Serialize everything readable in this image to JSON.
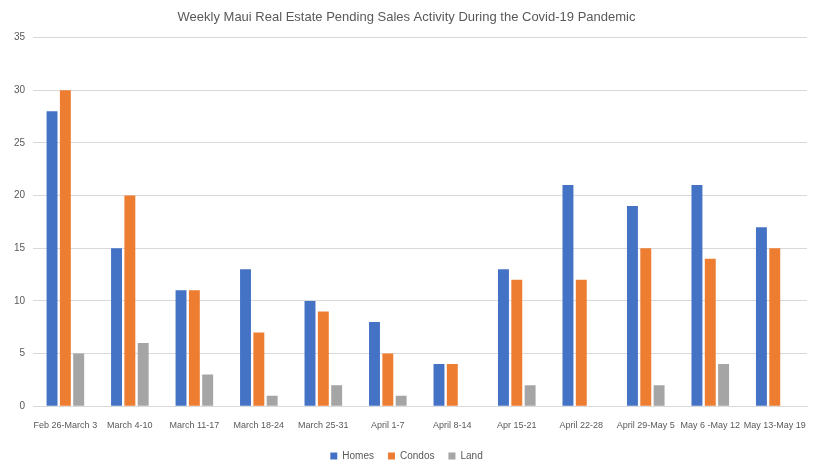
{
  "chart_data": {
    "type": "bar",
    "title": "Weekly Maui Real Estate Pending Sales Activity During the Covid-19 Pandemic",
    "categories": [
      "Feb 26-March 3",
      "March 4-10",
      "March 11-17",
      "March 18-24",
      "March 25-31",
      "April 1-7",
      "April 8-14",
      "Apr 15-21",
      "April 22-28",
      "April 29-May 5",
      "May 6 -May 12",
      "May 13-May 19"
    ],
    "series": [
      {
        "name": "Homes",
        "color": "#4472c4",
        "values": [
          28,
          15,
          11,
          13,
          10,
          8,
          4,
          13,
          21,
          19,
          21,
          17
        ]
      },
      {
        "name": "Condos",
        "color": "#ed7d31",
        "values": [
          30,
          20,
          11,
          7,
          9,
          5,
          4,
          12,
          12,
          15,
          14,
          15
        ]
      },
      {
        "name": "Land",
        "color": "#a5a5a5",
        "values": [
          5,
          6,
          3,
          1,
          2,
          1,
          0,
          2,
          0,
          2,
          4,
          0
        ]
      }
    ],
    "ylim": [
      0,
      35
    ],
    "yticks": [
      0,
      5,
      10,
      15,
      20,
      25,
      30,
      35
    ],
    "grid": true,
    "legend": "bottom",
    "data_labels": false
  }
}
